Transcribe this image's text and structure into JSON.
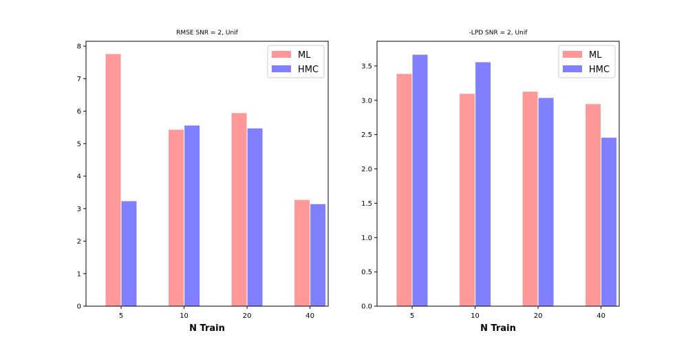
{
  "chart_data": [
    {
      "type": "bar",
      "title": "RMSE  SNR = 2, Unif",
      "xlabel": "N Train",
      "ylabel": "",
      "categories": [
        "5",
        "10",
        "20",
        "40"
      ],
      "series": [
        {
          "name": "ML",
          "values": [
            7.77,
            5.44,
            5.95,
            3.28
          ],
          "color": "#ff9999"
        },
        {
          "name": "HMC",
          "values": [
            3.24,
            5.57,
            5.48,
            3.15
          ],
          "color": "#8080ff"
        }
      ],
      "ylim": [
        0,
        8.15
      ],
      "yticks": [
        "0",
        "1",
        "2",
        "3",
        "4",
        "5",
        "6",
        "7",
        "8"
      ],
      "ytick_values": [
        0,
        1,
        2,
        3,
        4,
        5,
        6,
        7,
        8
      ],
      "legend": "top-right",
      "grid": false
    },
    {
      "type": "bar",
      "title": "-LPD  SNR = 2, Unif",
      "xlabel": "N Train",
      "ylabel": "",
      "categories": [
        "5",
        "10",
        "20",
        "40"
      ],
      "series": [
        {
          "name": "ML",
          "values": [
            3.39,
            3.1,
            3.13,
            2.95
          ],
          "color": "#ff9999"
        },
        {
          "name": "HMC",
          "values": [
            3.67,
            3.56,
            3.04,
            2.46
          ],
          "color": "#8080ff"
        }
      ],
      "ylim": [
        0,
        3.86
      ],
      "yticks": [
        "0.0",
        "0.5",
        "1.0",
        "1.5",
        "2.0",
        "2.5",
        "3.0",
        "3.5"
      ],
      "ytick_values": [
        0,
        0.5,
        1.0,
        1.5,
        2.0,
        2.5,
        3.0,
        3.5
      ],
      "legend": "top-right",
      "grid": false
    }
  ]
}
